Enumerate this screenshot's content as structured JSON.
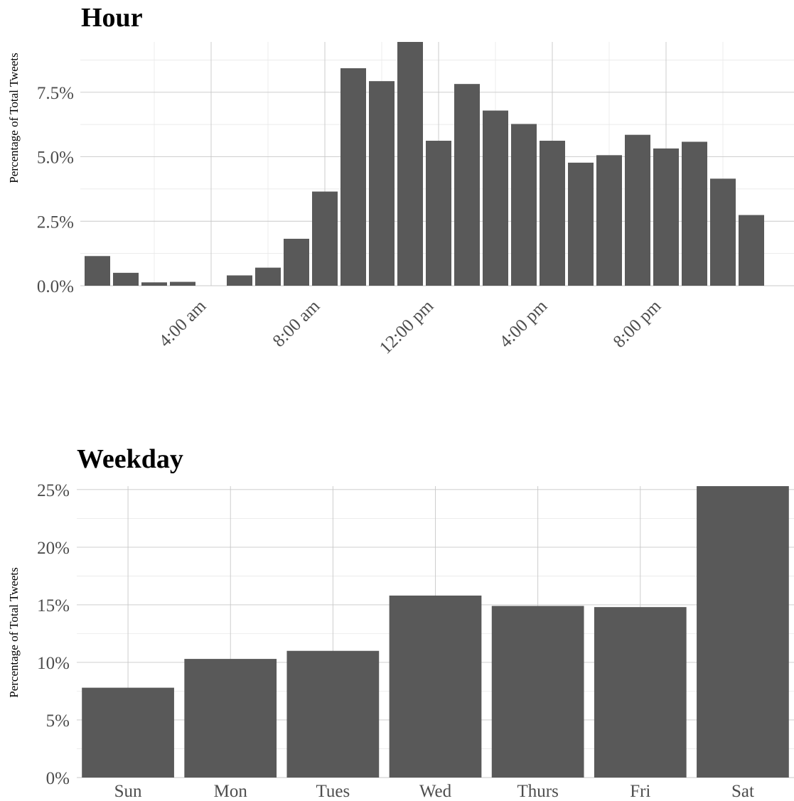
{
  "chart_data": [
    {
      "type": "bar",
      "title": "Hour",
      "ylabel": "Percentage of Total Tweets",
      "xlabel": "",
      "x": [
        1,
        2,
        3,
        4,
        5,
        6,
        7,
        8,
        9,
        10,
        11,
        12,
        13,
        14,
        15,
        16,
        17,
        18,
        19,
        20,
        21,
        22,
        23,
        24,
        25
      ],
      "values": [
        1.15,
        0.5,
        0.13,
        0.15,
        0,
        0.4,
        0.7,
        1.82,
        3.65,
        8.43,
        7.93,
        9.45,
        5.62,
        7.82,
        6.79,
        6.27,
        5.62,
        4.77,
        5.06,
        5.85,
        5.32,
        5.58,
        4.15,
        2.74,
        0
      ],
      "xticks": [
        {
          "x": 5,
          "label": "4:00 am"
        },
        {
          "x": 9,
          "label": "8:00 am"
        },
        {
          "x": 13,
          "label": "12:00 pm"
        },
        {
          "x": 17,
          "label": "4:00 pm"
        },
        {
          "x": 21,
          "label": "8:00 pm"
        }
      ],
      "yticks": [
        {
          "v": 0,
          "label": "0.0%"
        },
        {
          "v": 2.5,
          "label": "2.5%"
        },
        {
          "v": 5,
          "label": "5.0%"
        },
        {
          "v": 7.5,
          "label": "7.5%"
        }
      ],
      "ylim": [
        0,
        9.45
      ],
      "xlim": [
        0.4,
        25.5
      ],
      "grid": true,
      "legend": "none"
    },
    {
      "type": "bar",
      "title": "Weekday",
      "ylabel": "Percentage of Total Tweets",
      "xlabel": "",
      "categories": [
        "Sun",
        "Mon",
        "Tues",
        "Wed",
        "Thurs",
        "Fri",
        "Sat"
      ],
      "values": [
        7.8,
        10.3,
        11.0,
        15.8,
        14.9,
        14.8,
        25.3
      ],
      "yticks": [
        {
          "v": 0,
          "label": "0%"
        },
        {
          "v": 5,
          "label": "5%"
        },
        {
          "v": 10,
          "label": "10%"
        },
        {
          "v": 15,
          "label": "15%"
        },
        {
          "v": 20,
          "label": "20%"
        },
        {
          "v": 25,
          "label": "25%"
        }
      ],
      "ylim": [
        0,
        25.3
      ],
      "grid": true,
      "legend": "none"
    }
  ],
  "colors": {
    "bar": "#595959",
    "grid_major": "#c8c8c8",
    "grid_minor": "#e6e6e6",
    "tick_text": "#4d4d4d"
  }
}
